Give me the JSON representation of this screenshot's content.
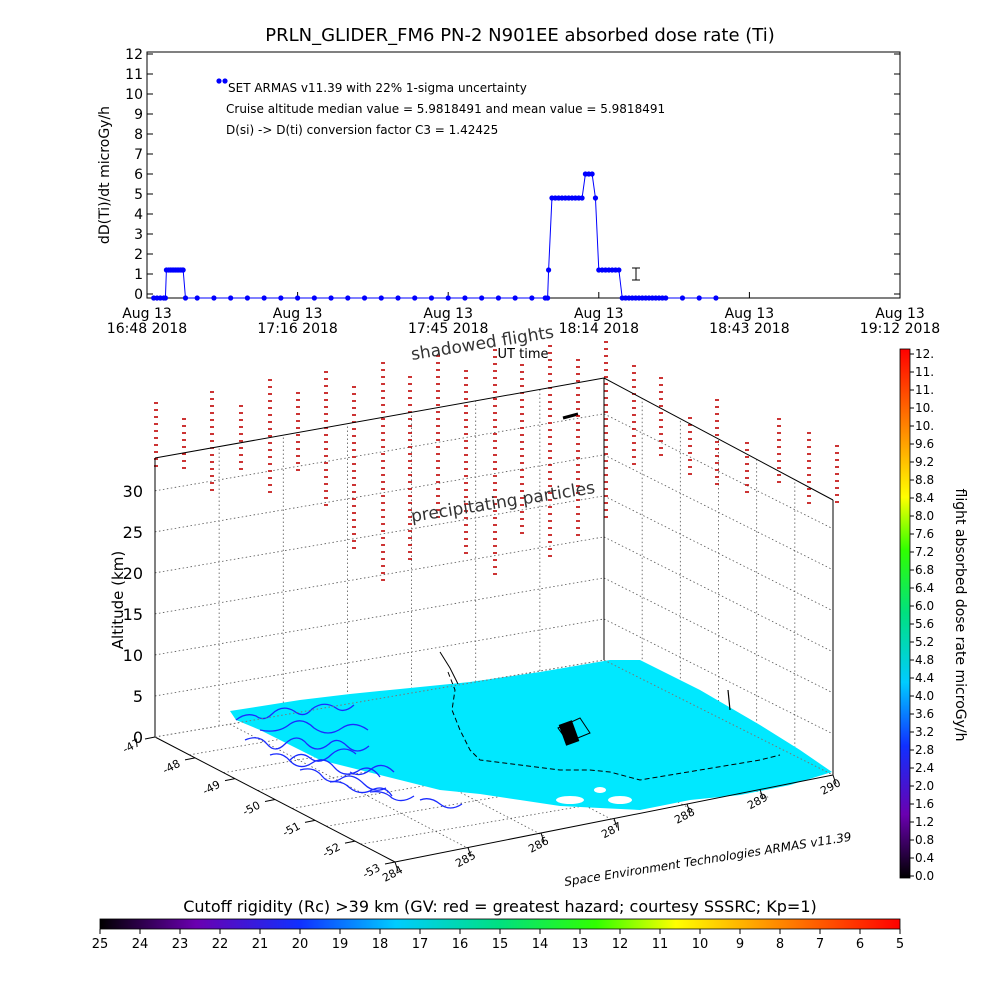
{
  "colors": {
    "series": "#0000ff",
    "stick": "#c00000",
    "land": "#00e0ff",
    "coast": "#1a2bff",
    "grid": "#555555",
    "axis": "#000000"
  },
  "chart_data": [
    {
      "type": "line",
      "title": "PRLN_GLIDER_FM6 PN-2 N901EE absorbed dose rate (Ti)",
      "ylabel": "dD(Ti)/dt microGy/h",
      "xlabel": "UT time",
      "ylim": [
        0,
        12
      ],
      "yticks": [
        "0",
        "1",
        "2",
        "3",
        "4",
        "5",
        "6",
        "7",
        "8",
        "9",
        "10",
        "11",
        "12"
      ],
      "xticks": [
        {
          "line1": "Aug 13",
          "line2": "16:48 2018"
        },
        {
          "line1": "Aug 13",
          "line2": "17:16 2018"
        },
        {
          "line1": "Aug 13",
          "line2": "17:45 2018"
        },
        {
          "line1": "Aug 13",
          "line2": "18:14 2018"
        },
        {
          "line1": "Aug 13",
          "line2": "18:43 2018"
        },
        {
          "line1": "Aug 13",
          "line2": "19:12 2018"
        }
      ],
      "annotations": [
        "SET ARMAS v11.39 with 22% 1-sigma uncertainty",
        "Cruise altitude median value = 5.9818491 and mean value = 5.9818491",
        "D(si) -> D(ti) conversion factor C3 = 1.42425"
      ],
      "series": [
        {
          "t_min": [
            4,
            6,
            8,
            10,
            11,
            11.6,
            13,
            14,
            15,
            16,
            17,
            18,
            19,
            20,
            21,
            21.6,
            23,
            30,
            40,
            50,
            60,
            70,
            80,
            90,
            100,
            110,
            120,
            130,
            140,
            150,
            160,
            170,
            180,
            190,
            200,
            210,
            220,
            230,
            238,
            239.4,
            240,
            242,
            244,
            246,
            248,
            250,
            252,
            254,
            256,
            258,
            260,
            262,
            264,
            266,
            268,
            270,
            272,
            274,
            276,
            278,
            280,
            282,
            284,
            286,
            288,
            290,
            292,
            294,
            296,
            298,
            300,
            302,
            304,
            306,
            308,
            310,
            320,
            330,
            340
          ],
          "values": [
            -0.2,
            -0.2,
            -0.2,
            -0.2,
            -0.2,
            1.2,
            1.2,
            1.2,
            1.2,
            1.2,
            1.2,
            1.2,
            1.2,
            1.2,
            1.2,
            1.2,
            -0.2,
            -0.2,
            -0.2,
            -0.2,
            -0.2,
            -0.2,
            -0.2,
            -0.2,
            -0.2,
            -0.2,
            -0.2,
            -0.2,
            -0.2,
            -0.2,
            -0.2,
            -0.2,
            -0.2,
            -0.2,
            -0.2,
            -0.2,
            -0.2,
            -0.2,
            -0.2,
            -0.2,
            1.2,
            4.8,
            4.8,
            4.8,
            4.8,
            4.8,
            4.8,
            4.8,
            4.8,
            4.8,
            4.8,
            6.0,
            6.0,
            6.0,
            4.8,
            1.2,
            1.2,
            1.2,
            1.2,
            1.2,
            1.2,
            1.2,
            -0.2,
            -0.2,
            -0.2,
            -0.2,
            -0.2,
            -0.2,
            -0.2,
            -0.2,
            -0.2,
            -0.2,
            -0.2,
            -0.2,
            -0.2,
            -0.2,
            -0.2,
            -0.2,
            -0.2
          ]
        }
      ]
    },
    {
      "type": "scatter",
      "ylabel": "Altitude (km)",
      "zticks": [
        "0",
        "5",
        "10",
        "15",
        "20",
        "25",
        "30"
      ],
      "lat_ticks": [
        "-47",
        "-48",
        "-49",
        "-50",
        "-51",
        "-52",
        "-53"
      ],
      "lon_ticks": [
        "284",
        "285",
        "286",
        "287",
        "288",
        "289",
        "290"
      ],
      "labels": {
        "shadowed": "shadowed flights",
        "precip": "precipitating particles",
        "credit": "Space Environment Technologies ARMAS v11.39"
      }
    },
    {
      "type": "table",
      "colorbar_label": "flight absorbed dose rate microGy/h",
      "colorbar_ticks": [
        "0.0",
        "0.4",
        "0.8",
        "1.2",
        "1.6",
        "2.0",
        "2.4",
        "2.8",
        "3.2",
        "3.6",
        "4.0",
        "4.4",
        "4.8",
        "5.2",
        "5.6",
        "6.0",
        "6.4",
        "6.8",
        "7.2",
        "7.6",
        "8.0",
        "8.4",
        "8.8",
        "9.2",
        "9.6",
        "10.",
        "10.",
        "11.",
        "11.",
        "12."
      ]
    },
    {
      "type": "table",
      "colorbar_label": "Cutoff rigidity (Rc) >39 km (GV: red = greatest hazard; courtesy SSSRC; Kp=1)",
      "colorbar_ticks": [
        "25",
        "24",
        "23",
        "22",
        "21",
        "20",
        "19",
        "18",
        "17",
        "16",
        "15",
        "14",
        "13",
        "12",
        "11",
        "10",
        "9",
        "8",
        "7",
        "6",
        "5"
      ]
    }
  ]
}
